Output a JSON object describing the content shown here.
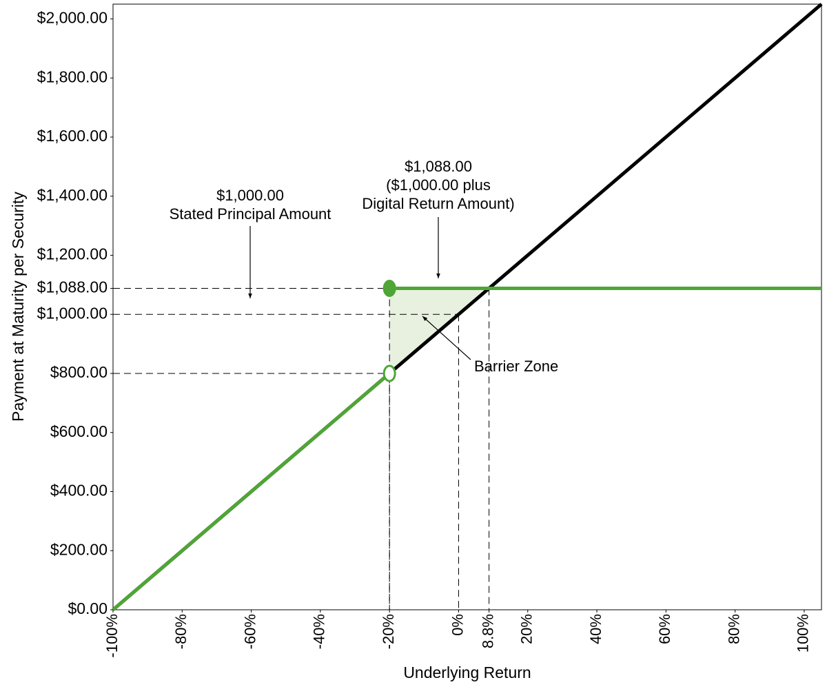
{
  "chart_data": {
    "type": "line",
    "x_label": "Underlying Return",
    "y_label": "Payment at Maturity per Security",
    "xlim": [
      -100,
      105
    ],
    "ylim": [
      0,
      2050
    ],
    "xticks": [
      {
        "value": -100,
        "label": "-100%"
      },
      {
        "value": -80,
        "label": "-80%"
      },
      {
        "value": -60,
        "label": "-60%"
      },
      {
        "value": -40,
        "label": "-40%"
      },
      {
        "value": -20,
        "label": "-20%"
      },
      {
        "value": 0,
        "label": "0%"
      },
      {
        "value": 8.8,
        "label": "8.8%"
      },
      {
        "value": 20,
        "label": "20%"
      },
      {
        "value": 40,
        "label": "40%"
      },
      {
        "value": 60,
        "label": "60%"
      },
      {
        "value": 80,
        "label": "80%"
      },
      {
        "value": 100,
        "label": "100%"
      }
    ],
    "yticks": [
      {
        "value": 0,
        "label": "$0.00"
      },
      {
        "value": 200,
        "label": "$200.00"
      },
      {
        "value": 400,
        "label": "$400.00"
      },
      {
        "value": 600,
        "label": "$600.00"
      },
      {
        "value": 800,
        "label": "$800.00"
      },
      {
        "value": 1000,
        "label": "$1,000.00"
      },
      {
        "value": 1088,
        "label": "$1,088.00"
      },
      {
        "value": 1200,
        "label": "$1,200.00"
      },
      {
        "value": 1400,
        "label": "$1,400.00"
      },
      {
        "value": 1600,
        "label": "$1,600.00"
      },
      {
        "value": 1800,
        "label": "$1,800.00"
      },
      {
        "value": 2000,
        "label": "$2,000.00"
      }
    ],
    "grid": false,
    "series": [
      {
        "color": "#000000",
        "x": [
          -100,
          105
        ],
        "values": [
          0,
          2050
        ]
      },
      {
        "color": "#4fa536",
        "x": [
          -100,
          -20,
          null,
          -20,
          105
        ],
        "values": [
          0,
          800,
          null,
          1088,
          1088
        ],
        "markers": [
          null,
          "open",
          null,
          "filled",
          null
        ]
      }
    ],
    "shaded_region": {
      "color": "#e8f1df",
      "x": [
        -20,
        -20,
        8.8
      ],
      "y": [
        800,
        1088,
        1088
      ]
    },
    "guides": [
      {
        "x": -20,
        "y": 1088
      },
      {
        "x": -20,
        "y": 800
      },
      {
        "x": 0,
        "y": 1000
      },
      {
        "x": 8.8,
        "y": 1088
      }
    ],
    "annotations": [
      {
        "lines": [
          "$1,000.00",
          "Stated Principal Amount"
        ]
      },
      {
        "lines": [
          "$1,088.00",
          "($1,000.00 plus",
          "Digital Return Amount)"
        ]
      },
      {
        "lines": [
          "Barrier Zone"
        ]
      }
    ]
  }
}
